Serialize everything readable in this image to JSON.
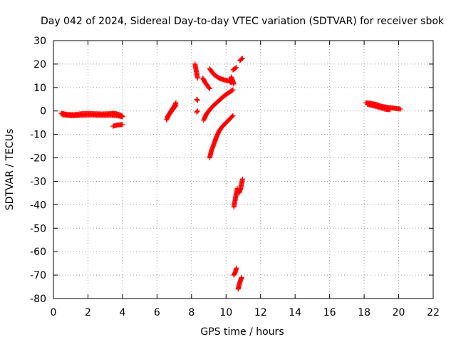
{
  "chart_data": {
    "type": "scatter",
    "title": "Day 042 of 2024, Sidereal Day-to-day VTEC variation (SDTVAR) for receiver sbok",
    "xlabel": "GPS time / hours",
    "ylabel": "SDTVAR / TECUs",
    "xlim": [
      0,
      22
    ],
    "ylim": [
      -80,
      30
    ],
    "xticks": [
      0,
      2,
      4,
      6,
      8,
      10,
      12,
      14,
      16,
      18,
      20,
      22
    ],
    "yticks": [
      -80,
      -70,
      -60,
      -50,
      -40,
      -30,
      -20,
      -10,
      0,
      10,
      20,
      30
    ],
    "xtick_labels": [
      "0",
      "2",
      "4",
      "6",
      "8",
      "10",
      "12",
      "14",
      "16",
      "18",
      "20",
      "22"
    ],
    "ytick_labels": [
      "-80",
      "-70",
      "-60",
      "-50",
      "-40",
      "-30",
      "-20",
      "-10",
      "0",
      "10",
      "20",
      "30"
    ],
    "grid": true,
    "marker": "+",
    "color": "#ff0000",
    "segments": [
      {
        "points": [
          [
            0.45,
            -1.0
          ],
          [
            0.8,
            -1.5
          ],
          [
            1.2,
            -1.6
          ],
          [
            1.6,
            -1.2
          ],
          [
            2.0,
            -1.0
          ],
          [
            2.4,
            -1.2
          ],
          [
            2.8,
            -1.3
          ],
          [
            3.2,
            -1.2
          ],
          [
            3.5,
            -1.0
          ],
          [
            3.8,
            -1.5
          ],
          [
            4.0,
            -2.2
          ]
        ]
      },
      {
        "points": [
          [
            0.5,
            -1.6
          ],
          [
            1.0,
            -2.0
          ],
          [
            1.5,
            -1.9
          ],
          [
            2.0,
            -1.7
          ],
          [
            2.5,
            -1.8
          ],
          [
            3.0,
            -1.9
          ],
          [
            3.4,
            -1.8
          ],
          [
            3.7,
            -2.0
          ],
          [
            4.0,
            -2.5
          ]
        ]
      },
      {
        "points": [
          [
            3.45,
            -6.5
          ],
          [
            3.7,
            -6.0
          ],
          [
            4.0,
            -5.8
          ]
        ]
      },
      {
        "points": [
          [
            6.55,
            -3.8
          ],
          [
            6.7,
            -1.5
          ],
          [
            6.85,
            0.5
          ],
          [
            7.0,
            2.0
          ],
          [
            7.1,
            3.5
          ]
        ]
      },
      {
        "points": [
          [
            6.6,
            -2.5
          ],
          [
            6.8,
            -0.5
          ],
          [
            6.95,
            1.0
          ],
          [
            7.1,
            2.5
          ]
        ]
      },
      {
        "points": [
          [
            8.2,
            20.0
          ],
          [
            8.25,
            18.0
          ],
          [
            8.3,
            16.0
          ],
          [
            8.35,
            14.0
          ]
        ]
      },
      {
        "points": [
          [
            8.3,
            5.0
          ],
          [
            8.35,
            4.5
          ]
        ]
      },
      {
        "points": [
          [
            8.3,
            -0.5
          ],
          [
            8.35,
            0.0
          ]
        ]
      },
      {
        "points": [
          [
            8.65,
            14.0
          ],
          [
            8.8,
            12.0
          ],
          [
            8.95,
            10.5
          ],
          [
            9.05,
            9.5
          ]
        ]
      },
      {
        "points": [
          [
            9.05,
            18.0
          ],
          [
            9.3,
            15.5
          ],
          [
            9.6,
            14.0
          ],
          [
            9.9,
            13.2
          ],
          [
            10.2,
            12.8
          ],
          [
            10.3,
            12.0
          ]
        ]
      },
      {
        "points": [
          [
            10.3,
            14.5
          ],
          [
            10.4,
            12.5
          ],
          [
            10.45,
            11.5
          ]
        ]
      },
      {
        "points": [
          [
            8.7,
            -4.0
          ],
          [
            8.85,
            -1.5
          ],
          [
            9.05,
            0.5
          ],
          [
            9.3,
            2.5
          ],
          [
            9.6,
            4.5
          ],
          [
            9.9,
            6.5
          ],
          [
            10.2,
            8.0
          ],
          [
            10.4,
            9.0
          ]
        ]
      },
      {
        "points": [
          [
            9.05,
            -20.0
          ],
          [
            9.15,
            -17.0
          ],
          [
            9.3,
            -14.0
          ],
          [
            9.45,
            -11.0
          ],
          [
            9.6,
            -8.5
          ],
          [
            9.8,
            -6.5
          ],
          [
            10.0,
            -5.0
          ],
          [
            10.2,
            -3.5
          ],
          [
            10.4,
            -2.0
          ]
        ]
      },
      {
        "points": [
          [
            10.4,
            17.5
          ],
          [
            10.6,
            18.5
          ]
        ]
      },
      {
        "points": [
          [
            10.8,
            21.5
          ],
          [
            10.95,
            22.5
          ]
        ]
      },
      {
        "points": [
          [
            10.45,
            -41.0
          ],
          [
            10.5,
            -39.0
          ],
          [
            10.55,
            -37.0
          ],
          [
            10.6,
            -35.0
          ],
          [
            10.65,
            -33.0
          ]
        ]
      },
      {
        "points": [
          [
            10.75,
            -35.0
          ],
          [
            10.85,
            -33.0
          ],
          [
            10.9,
            -31.0
          ],
          [
            10.95,
            -29.0
          ]
        ]
      },
      {
        "points": [
          [
            10.45,
            -70.0
          ],
          [
            10.55,
            -68.5
          ],
          [
            10.6,
            -67.0
          ]
        ]
      },
      {
        "points": [
          [
            10.7,
            -76.0
          ],
          [
            10.8,
            -73.0
          ],
          [
            10.9,
            -71.0
          ]
        ]
      },
      {
        "points": [
          [
            18.1,
            3.5
          ],
          [
            18.4,
            3.2
          ],
          [
            18.7,
            2.8
          ],
          [
            19.0,
            2.0
          ],
          [
            19.3,
            1.6
          ],
          [
            19.6,
            1.3
          ],
          [
            19.9,
            1.0
          ],
          [
            20.1,
            0.8
          ]
        ]
      },
      {
        "points": [
          [
            18.2,
            2.8
          ],
          [
            18.5,
            2.3
          ],
          [
            18.9,
            1.5
          ],
          [
            19.2,
            0.8
          ],
          [
            19.5,
            0.5
          ]
        ]
      }
    ]
  }
}
